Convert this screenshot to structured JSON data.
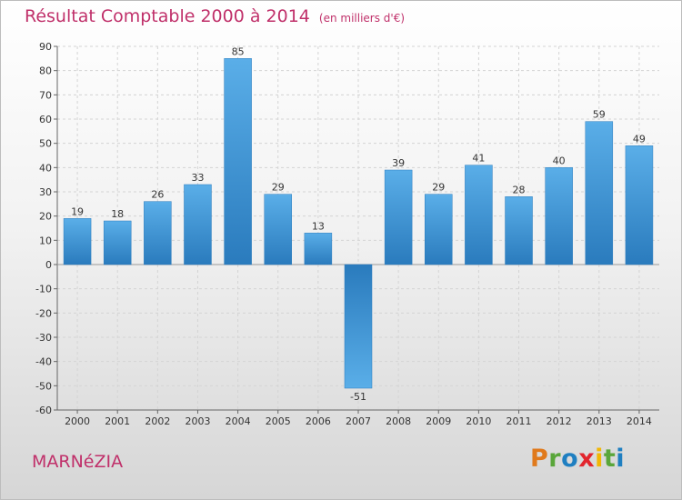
{
  "header": {
    "title": "Résultat Comptable 2000 à 2014",
    "subtitle": "(en milliers d'€)"
  },
  "footer": {
    "commune": "MARNéZIA",
    "brand": [
      "P",
      "r",
      "o",
      "x",
      "i",
      "t",
      "i"
    ],
    "brand_colors": [
      "#e07a1c",
      "#5aa63a",
      "#1f7fc1",
      "#e2252d",
      "#f2b705",
      "#5aa63a",
      "#1f7fc1"
    ]
  },
  "colors": {
    "bar_light": "#5aaee8",
    "bar_dark": "#2a7bbd",
    "title": "#c0306a"
  },
  "chart_data": {
    "type": "bar",
    "title": "Résultat Comptable 2000 à 2014",
    "xlabel": "",
    "ylabel": "",
    "ylim": [
      -60,
      90
    ],
    "yticks": [
      90,
      80,
      70,
      60,
      50,
      40,
      30,
      20,
      10,
      0,
      -10,
      -20,
      -30,
      -40,
      -50,
      -60
    ],
    "ytick_labels": [
      "90",
      "80",
      "70",
      "60",
      "50",
      "40",
      "30",
      "20",
      "10",
      "0",
      "-10",
      "-20",
      "-30",
      "-40",
      "-50",
      "-60"
    ],
    "grid": true,
    "categories": [
      "2000",
      "2001",
      "2002",
      "2003",
      "2004",
      "2005",
      "2006",
      "2007",
      "2008",
      "2009",
      "2010",
      "2011",
      "2012",
      "2013",
      "2014"
    ],
    "values": [
      19,
      18,
      26,
      33,
      85,
      29,
      13,
      -51,
      39,
      29,
      41,
      28,
      40,
      59,
      49
    ],
    "value_labels": [
      "19",
      "18",
      "26",
      "33",
      "85",
      "29",
      "13",
      "-51",
      "39",
      "29",
      "41",
      "28",
      "40",
      "59",
      "49"
    ]
  }
}
